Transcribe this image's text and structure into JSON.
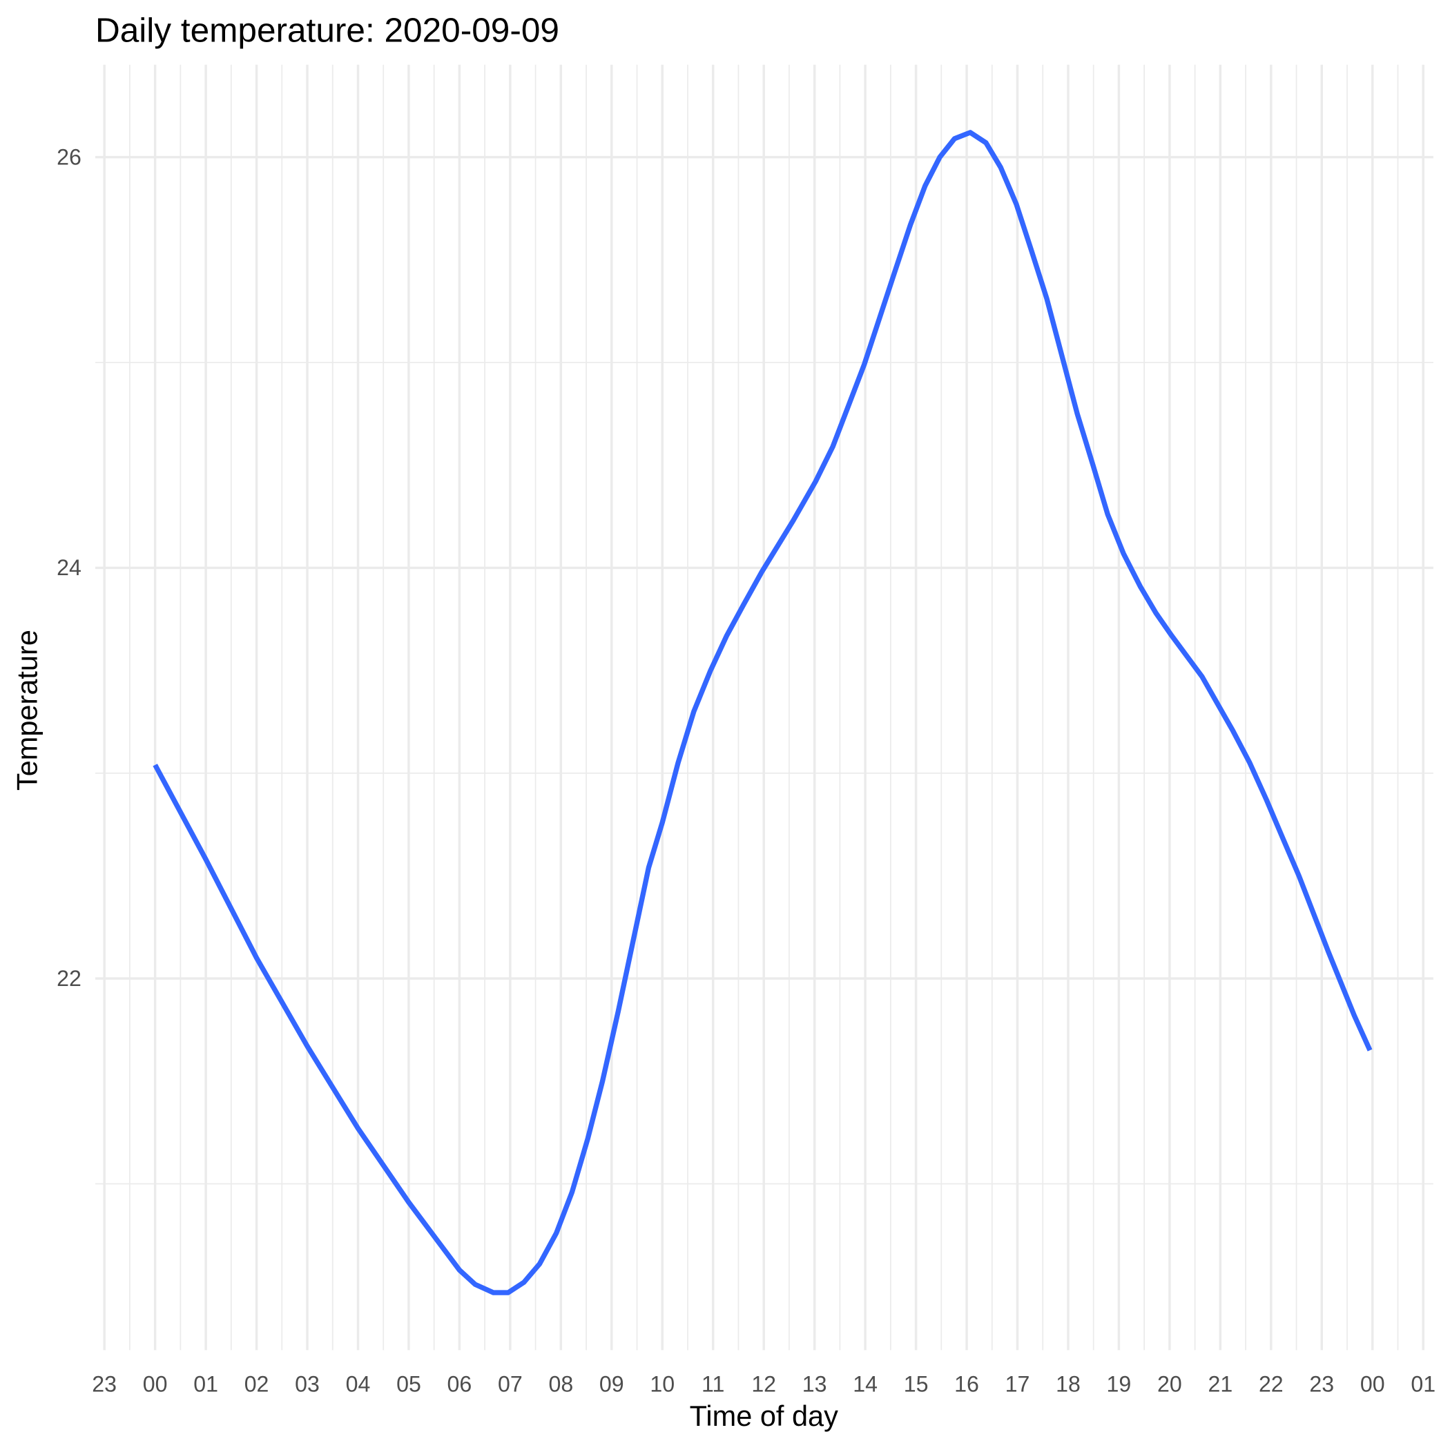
{
  "chart_data": {
    "type": "line",
    "title": "Daily temperature: 2020-09-09",
    "x_label": "Time of day",
    "y_label": "Temperature",
    "grid": true,
    "series": [
      {
        "name": "Temperature",
        "color": "#3366ff",
        "x": [
          0,
          1,
          2,
          3,
          4,
          5,
          6,
          6.31,
          6.67,
          6.96,
          7.27,
          7.58,
          7.91,
          8.22,
          8.53,
          8.82,
          9.13,
          9.73,
          10,
          10.31,
          10.62,
          10.95,
          11.27,
          11.6,
          11.96,
          12.58,
          13.02,
          13.36,
          13.67,
          13.98,
          14.58,
          14.89,
          15.18,
          15.47,
          15.76,
          16.07,
          16.38,
          16.67,
          16.98,
          17.27,
          17.58,
          18.18,
          18.49,
          18.78,
          19.09,
          19.42,
          19.73,
          20.04,
          20.64,
          21.24,
          21.58,
          21.91,
          22.22,
          22.55,
          23.13,
          23.64,
          23.95
        ],
        "values": [
          23.04,
          22.58,
          22.1,
          21.67,
          21.27,
          20.91,
          20.58,
          20.51,
          20.47,
          20.47,
          20.52,
          20.61,
          20.76,
          20.96,
          21.22,
          21.5,
          21.84,
          22.54,
          22.76,
          23.05,
          23.3,
          23.5,
          23.67,
          23.82,
          23.98,
          24.23,
          24.42,
          24.59,
          24.79,
          24.99,
          25.44,
          25.67,
          25.86,
          26.0,
          26.09,
          26.12,
          26.07,
          25.95,
          25.77,
          25.55,
          25.31,
          24.75,
          24.5,
          24.26,
          24.07,
          23.91,
          23.78,
          23.67,
          23.47,
          23.21,
          23.05,
          22.87,
          22.69,
          22.5,
          22.13,
          21.82,
          21.65
        ]
      }
    ],
    "xlim": [
      -1.18,
      25.2
    ],
    "xticks": [
      {
        "value": -1,
        "label": "23"
      },
      {
        "value": 0,
        "label": "00"
      },
      {
        "value": 1,
        "label": "01"
      },
      {
        "value": 2,
        "label": "02"
      },
      {
        "value": 3,
        "label": "03"
      },
      {
        "value": 4,
        "label": "04"
      },
      {
        "value": 5,
        "label": "05"
      },
      {
        "value": 6,
        "label": "06"
      },
      {
        "value": 7,
        "label": "07"
      },
      {
        "value": 8,
        "label": "08"
      },
      {
        "value": 9,
        "label": "09"
      },
      {
        "value": 10,
        "label": "10"
      },
      {
        "value": 11,
        "label": "11"
      },
      {
        "value": 12,
        "label": "12"
      },
      {
        "value": 13,
        "label": "13"
      },
      {
        "value": 14,
        "label": "14"
      },
      {
        "value": 15,
        "label": "15"
      },
      {
        "value": 16,
        "label": "16"
      },
      {
        "value": 17,
        "label": "17"
      },
      {
        "value": 18,
        "label": "18"
      },
      {
        "value": 19,
        "label": "19"
      },
      {
        "value": 20,
        "label": "20"
      },
      {
        "value": 21,
        "label": "21"
      },
      {
        "value": 22,
        "label": "22"
      },
      {
        "value": 23,
        "label": "23"
      },
      {
        "value": 24,
        "label": "00"
      },
      {
        "value": 25,
        "label": "01"
      }
    ],
    "ylim": [
      20.19,
      26.45
    ],
    "yticks": [
      22,
      24,
      26
    ],
    "yminor": [
      21,
      23,
      25
    ]
  }
}
